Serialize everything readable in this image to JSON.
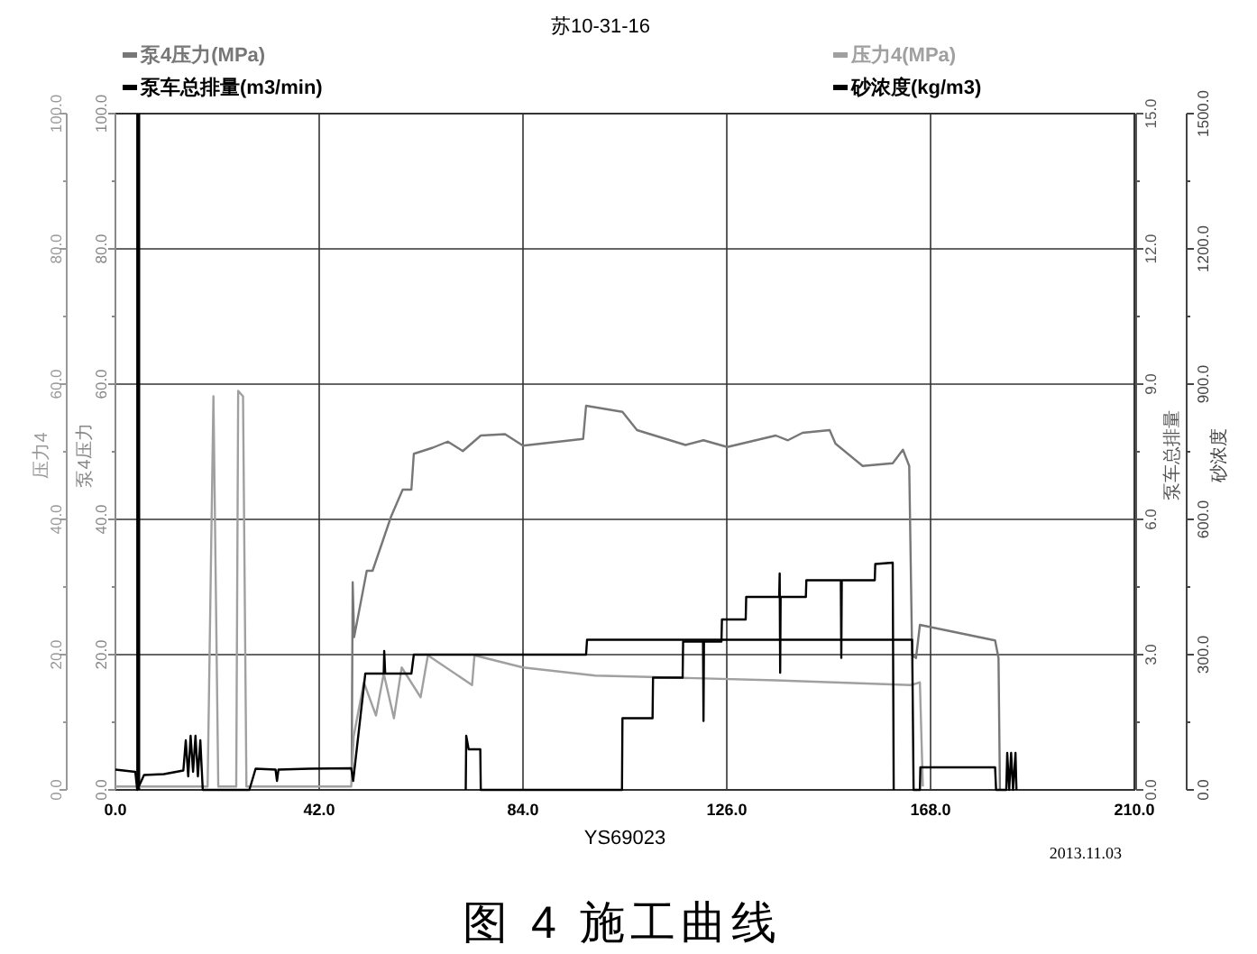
{
  "chart_data": {
    "type": "line",
    "title": "苏10-31-16",
    "xlabel": "YS69023",
    "ylabel": "泵4压力",
    "y2label": "泵车总排量",
    "y3label": "砂浓度",
    "annotations": [
      "压力4",
      "2013.11.03",
      "图 4 施工曲线"
    ],
    "xlim": [
      0,
      210
    ],
    "xticks": [
      {
        "value": 0,
        "label": "0.0"
      },
      {
        "value": 42,
        "label": "42.0"
      },
      {
        "value": 84,
        "label": "84.0"
      },
      {
        "value": 126,
        "label": "126.0"
      },
      {
        "value": 168,
        "label": "168.0"
      },
      {
        "value": 210,
        "label": "210.0"
      }
    ],
    "ylim": [
      0,
      100
    ],
    "yticks": [
      {
        "value": 0,
        "label": "0.0"
      },
      {
        "value": 20,
        "label": "20.0"
      },
      {
        "value": 40,
        "label": "40.0"
      },
      {
        "value": 60,
        "label": "60.0"
      },
      {
        "value": 80,
        "label": "80.0"
      },
      {
        "value": 100,
        "label": "100.0"
      }
    ],
    "y2lim": [
      0,
      15
    ],
    "y2ticks": [
      {
        "value": 0,
        "label": "0.0"
      },
      {
        "value": 3,
        "label": "3.0"
      },
      {
        "value": 6,
        "label": "6.0"
      },
      {
        "value": 9,
        "label": "9.0"
      },
      {
        "value": 12,
        "label": "12.0"
      },
      {
        "value": 15,
        "label": "15.0"
      }
    ],
    "y3lim": [
      0,
      1500
    ],
    "y3ticks": [
      {
        "value": 0,
        "label": "0.0"
      },
      {
        "value": 300,
        "label": "300.0"
      },
      {
        "value": 600,
        "label": "600.0"
      },
      {
        "value": 900,
        "label": "900.0"
      },
      {
        "value": 1200,
        "label": "1200.0"
      },
      {
        "value": 1500,
        "label": "1500.0"
      }
    ],
    "grid": true,
    "legend": "top",
    "ref_lines": [
      {
        "axis": "x",
        "value": 4.7,
        "color": "#000000"
      }
    ],
    "series": [
      {
        "name": "泵4压力(MPa)",
        "color": "#777777",
        "axis": "y",
        "x": [
          48.7,
          48.9,
          49.2,
          51.8,
          53,
          56.8,
          59.2,
          61,
          61.5,
          65.4,
          68.5,
          71.6,
          75.3,
          80.3,
          84,
          96.4,
          97,
          104.5,
          107.5,
          117.5,
          121.2,
          126.1,
          136.1,
          138.6,
          141.6,
          147.2,
          148.4,
          154,
          160.2,
          162.3,
          163.6,
          164.2,
          165,
          165.8,
          181.3,
          182,
          182.3
        ],
        "values": [
          3,
          30.7,
          22.6,
          32.4,
          32.4,
          40.4,
          44.4,
          44.4,
          49.7,
          50.6,
          51.5,
          50.1,
          52.4,
          52.6,
          50.9,
          51.9,
          56.8,
          55.9,
          53.2,
          51,
          51.7,
          50.7,
          52.4,
          51.7,
          52.8,
          53.2,
          51.2,
          47.9,
          48.3,
          50.3,
          47.9,
          19.9,
          19.5,
          24.4,
          22.1,
          19.5,
          0
        ]
      },
      {
        "name": "压力4(MPa)",
        "color": "#a0a0a0",
        "x": [
          0,
          19,
          20.2,
          21.2,
          24.9,
          25.3,
          26.3,
          27,
          48.6,
          49.1,
          51.2,
          53.7,
          55.3,
          57.4,
          59,
          62.9,
          64.4,
          73.5,
          74,
          84,
          98.9,
          110,
          136.1,
          163.9,
          165.8,
          166.4
        ],
        "values": [
          0.5,
          0.5,
          58.2,
          0.5,
          0.5,
          59,
          58.2,
          0.5,
          0.5,
          7.9,
          15.9,
          11,
          17.2,
          10.6,
          18.1,
          13.7,
          19.9,
          15.5,
          19.9,
          18.1,
          16.9,
          16.7,
          16.2,
          15.5,
          15.9,
          0.5
        ]
      },
      {
        "name": "泵车总排量(m3/min)",
        "color": "#000000",
        "axis": "y2",
        "x": [
          0,
          4.1,
          4.5,
          5.9,
          10,
          14,
          14.5,
          15,
          15.5,
          16,
          16.5,
          17,
          17.5,
          18,
          27.6,
          28.9,
          33,
          33.3,
          33.6,
          40,
          48.6,
          49,
          51.5,
          55.3,
          55.4,
          55.6,
          61,
          61.5,
          97,
          97.2,
          164.2,
          164.5,
          165.8,
          165.9,
          181.3,
          181.5,
          183.6,
          183.8,
          184.2,
          184.6,
          185,
          185.5,
          185.7
        ],
        "values": [
          0.45,
          0.4,
          0,
          0.33,
          0.35,
          0.43,
          1.1,
          0.3,
          1.2,
          0.4,
          1.2,
          0.3,
          1.1,
          0,
          0,
          0.47,
          0.45,
          0.2,
          0.45,
          0.47,
          0.48,
          0.2,
          2.58,
          2.58,
          3.08,
          2.58,
          2.58,
          3,
          3,
          3.33,
          3.33,
          0,
          0,
          0.5,
          0.5,
          0,
          0,
          0.82,
          0,
          0.82,
          0,
          0.82,
          0
        ]
      },
      {
        "name": "砂浓度(kg/m3)",
        "color": "#000000",
        "axis": "y3",
        "x": [
          72.2,
          72.3,
          72.8,
          75.2,
          75.3,
          104.4,
          104.5,
          110.7,
          110.8,
          116.9,
          117,
          121.1,
          121.2,
          121.3,
          124.9,
          125,
          129.9,
          130,
          136.8,
          136.9,
          137,
          137.1,
          142.3,
          142.4,
          149.5,
          149.6,
          149.7,
          156.5,
          156.6,
          160.2,
          160.4
        ],
        "values": [
          0,
          120,
          90,
          90,
          0,
          0,
          159,
          159,
          249,
          249,
          329,
          329,
          153,
          329,
          329,
          378,
          378,
          428,
          428,
          480,
          260,
          428,
          428,
          465,
          465,
          293,
          465,
          465,
          501,
          504,
          0
        ]
      }
    ]
  }
}
